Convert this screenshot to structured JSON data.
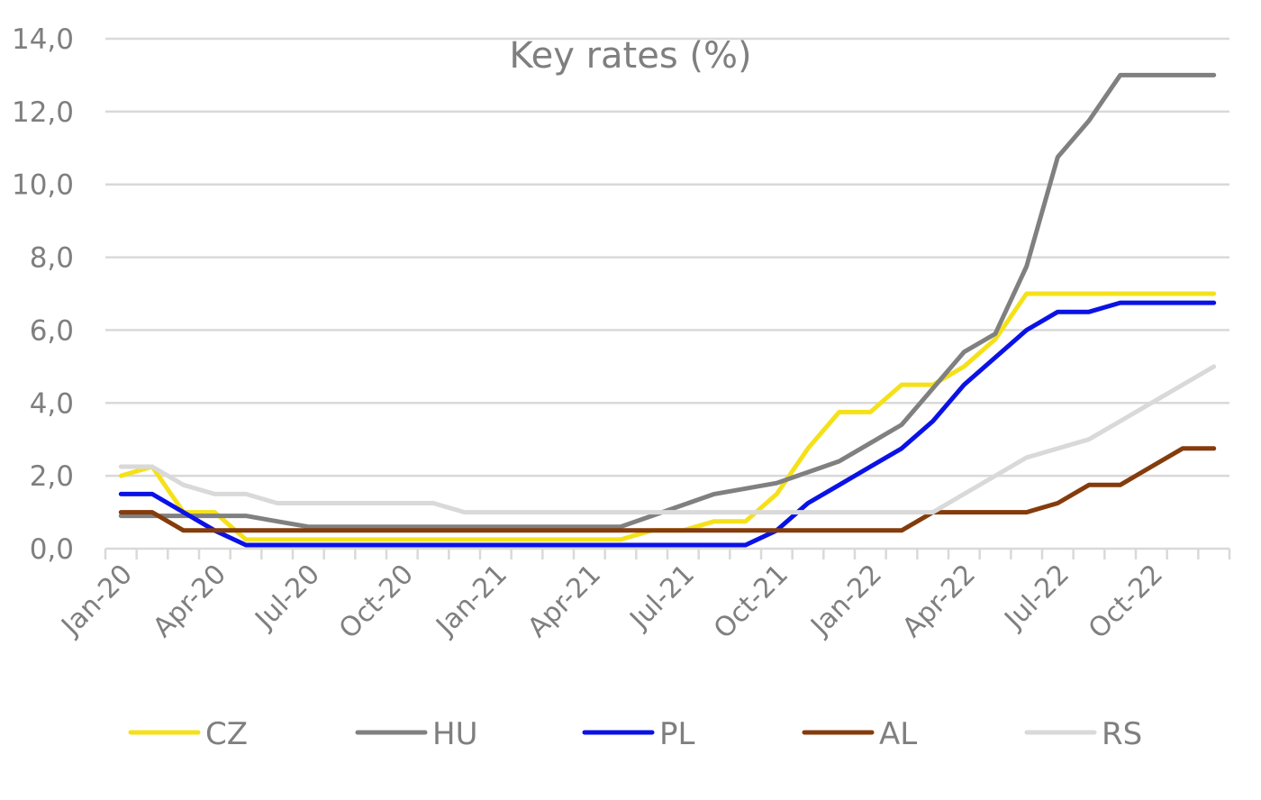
{
  "chart_data": {
    "type": "line",
    "title": "Key rates (%)",
    "xlabel": "",
    "ylabel": "",
    "ylim": [
      0,
      14
    ],
    "yticks": [
      "0,0",
      "2,0",
      "4,0",
      "6,0",
      "8,0",
      "10,0",
      "12,0",
      "14,0"
    ],
    "grid": "horizontal",
    "legend_position": "bottom",
    "x": [
      "Jan-20",
      "Feb-20",
      "Mar-20",
      "Apr-20",
      "May-20",
      "Jun-20",
      "Jul-20",
      "Aug-20",
      "Sep-20",
      "Oct-20",
      "Nov-20",
      "Dec-20",
      "Jan-21",
      "Feb-21",
      "Mar-21",
      "Apr-21",
      "May-21",
      "Jun-21",
      "Jul-21",
      "Aug-21",
      "Sep-21",
      "Oct-21",
      "Nov-21",
      "Dec-21",
      "Jan-22",
      "Feb-22",
      "Mar-22",
      "Apr-22",
      "May-22",
      "Jun-22",
      "Jul-22",
      "Aug-22",
      "Sep-22",
      "Oct-22",
      "Nov-22",
      "Dec-22"
    ],
    "xtick_labels": [
      "Jan-20",
      "Apr-20",
      "Jul-20",
      "Oct-20",
      "Jan-21",
      "Apr-21",
      "Jul-21",
      "Oct-21",
      "Jan-22",
      "Apr-22",
      "Jul-22",
      "Oct-22"
    ],
    "series": [
      {
        "name": "CZ",
        "color": "#f5e11a",
        "values": [
          2.0,
          2.25,
          1.0,
          1.0,
          0.25,
          0.25,
          0.25,
          0.25,
          0.25,
          0.25,
          0.25,
          0.25,
          0.25,
          0.25,
          0.25,
          0.25,
          0.25,
          0.5,
          0.5,
          0.75,
          0.75,
          1.5,
          2.75,
          3.75,
          3.75,
          4.5,
          4.5,
          5.0,
          5.75,
          7.0,
          7.0,
          7.0,
          7.0,
          7.0,
          7.0,
          7.0
        ]
      },
      {
        "name": "HU",
        "color": "#808080",
        "values": [
          0.9,
          0.9,
          0.9,
          0.9,
          0.9,
          0.75,
          0.6,
          0.6,
          0.6,
          0.6,
          0.6,
          0.6,
          0.6,
          0.6,
          0.6,
          0.6,
          0.6,
          0.9,
          1.2,
          1.5,
          1.65,
          1.8,
          2.1,
          2.4,
          2.9,
          3.4,
          4.4,
          5.4,
          5.9,
          7.75,
          10.75,
          11.75,
          13.0,
          13.0,
          13.0,
          13.0
        ]
      },
      {
        "name": "PL",
        "color": "#0a12e6",
        "values": [
          1.5,
          1.5,
          1.0,
          0.5,
          0.1,
          0.1,
          0.1,
          0.1,
          0.1,
          0.1,
          0.1,
          0.1,
          0.1,
          0.1,
          0.1,
          0.1,
          0.1,
          0.1,
          0.1,
          0.1,
          0.1,
          0.5,
          1.25,
          1.75,
          2.25,
          2.75,
          3.5,
          4.5,
          5.25,
          6.0,
          6.5,
          6.5,
          6.75,
          6.75,
          6.75,
          6.75
        ]
      },
      {
        "name": "AL",
        "color": "#843c0c",
        "values": [
          1.0,
          1.0,
          0.5,
          0.5,
          0.5,
          0.5,
          0.5,
          0.5,
          0.5,
          0.5,
          0.5,
          0.5,
          0.5,
          0.5,
          0.5,
          0.5,
          0.5,
          0.5,
          0.5,
          0.5,
          0.5,
          0.5,
          0.5,
          0.5,
          0.5,
          0.5,
          1.0,
          1.0,
          1.0,
          1.0,
          1.25,
          1.75,
          1.75,
          2.25,
          2.75,
          2.75
        ]
      },
      {
        "name": "RS",
        "color": "#d9d9d9",
        "values": [
          2.25,
          2.25,
          1.75,
          1.5,
          1.5,
          1.25,
          1.25,
          1.25,
          1.25,
          1.25,
          1.25,
          1.0,
          1.0,
          1.0,
          1.0,
          1.0,
          1.0,
          1.0,
          1.0,
          1.0,
          1.0,
          1.0,
          1.0,
          1.0,
          1.0,
          1.0,
          1.0,
          1.5,
          2.0,
          2.5,
          2.75,
          3.0,
          3.5,
          4.0,
          4.5,
          5.0
        ]
      }
    ]
  }
}
